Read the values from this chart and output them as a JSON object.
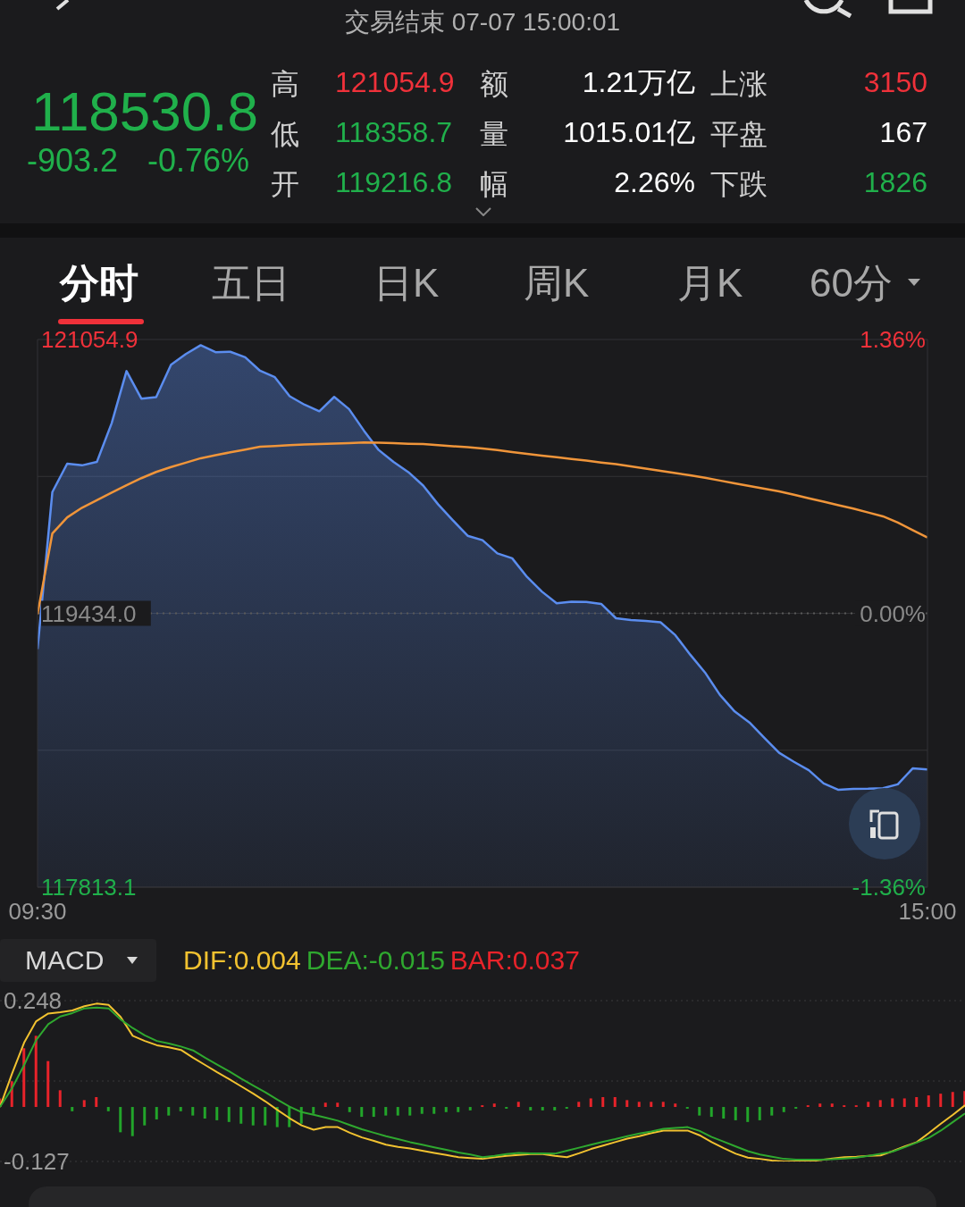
{
  "chart_data": [
    {
      "type": "other",
      "title": "交易结束 07-07 15:00:01",
      "annotations": [
        "118530.8",
        "-903.2",
        "-0.76%",
        "高",
        "121054.9",
        "额",
        "1.21万亿",
        "上涨",
        "3150",
        "低",
        "118358.7",
        "量",
        "1015.01亿",
        "平盘",
        "167",
        "开",
        "119216.8",
        "幅",
        "2.26%",
        "下跌",
        "1826",
        "分时",
        "五日",
        "日K",
        "周K",
        "月K",
        "60分"
      ]
    },
    {
      "type": "line",
      "categories": [
        "09:30",
        null,
        null,
        null,
        null,
        null,
        null,
        null,
        null,
        null,
        null,
        null,
        null,
        null,
        null,
        null,
        null,
        null,
        null,
        null,
        null,
        null,
        null,
        null,
        null,
        null,
        null,
        null,
        null,
        null,
        null,
        null,
        null,
        null,
        null,
        null,
        null,
        null,
        null,
        null,
        null,
        null,
        null,
        null,
        null,
        null,
        null,
        null,
        null,
        null,
        null,
        null,
        null,
        null,
        null,
        null,
        null,
        null,
        null,
        null,
        "15:00"
      ],
      "ylim": [
        117813.1,
        121054.9
      ],
      "yticks": [
        117813.1,
        {
          "value": 118623.55,
          "label": null
        },
        {
          "value": 119434.0,
          "label": "119434.0"
        },
        {
          "value": 120244.45,
          "label": null
        },
        121054.9
      ],
      "y2lim": [
        -1.36,
        1.36
      ],
      "y2ticks": [
        {
          "value": -1.36,
          "label": "-1.36%"
        },
        {
          "value": 0,
          "label": "0.00%"
        },
        {
          "value": 1.36,
          "label": "1.36%"
        }
      ],
      "ref_lines": [
        {
          "axis": "y",
          "value": 119434.0,
          "color": "#5a5a5a",
          "line_style": "dotted"
        }
      ],
      "grid": "y",
      "marker": "none",
      "line_style": "solid",
      "series": [
        {
          "type": "area",
          "color": "#5b8def",
          "values": [
            119222,
            120152,
            120320,
            120310,
            120330,
            120560,
            120868,
            120705,
            120714,
            120905,
            120969,
            121021,
            120980,
            120982,
            120950,
            120870,
            120832,
            120719,
            120669,
            120630,
            120715,
            120643,
            120516,
            120401,
            120330,
            120270,
            120190,
            120080,
            119985,
            119893,
            119867,
            119789,
            119760,
            119650,
            119563,
            119493,
            119503,
            119502,
            119490,
            119405,
            119394,
            119389,
            119381,
            119305,
            119190,
            119084,
            118952,
            118853,
            118788,
            118697,
            118608,
            118555,
            118505,
            118427,
            118389,
            118395,
            118396,
            118399,
            118422,
            118516,
            118510
          ]
        },
        {
          "type": "line",
          "color": "#f0953a",
          "values": [
            119429,
            119907,
            120002,
            120059,
            120104,
            120148,
            120192,
            120234,
            120271,
            120300,
            120326,
            120352,
            120370,
            120387,
            120403,
            120420,
            120424,
            120429,
            120433,
            120436,
            120439,
            120442,
            120445,
            120444,
            120441,
            120438,
            120436,
            120430,
            120423,
            120417,
            120410,
            120400,
            120389,
            120378,
            120368,
            120358,
            120348,
            120338,
            120327,
            120317,
            120304,
            120291,
            120277,
            120264,
            120251,
            120236,
            120220,
            120204,
            120188,
            120172,
            120156,
            120136,
            120115,
            120095,
            120074,
            120054,
            120031,
            120008,
            119971,
            119927,
            119883
          ]
        }
      ]
    },
    {
      "type": "bar",
      "title": "MACD",
      "categories": [
        null,
        null,
        null,
        null,
        null,
        null,
        null,
        null,
        null,
        null,
        null,
        null,
        null,
        null,
        null,
        null,
        null,
        null,
        null,
        null,
        null,
        null,
        null,
        null,
        null,
        null,
        null,
        null,
        null,
        null,
        null,
        null,
        null,
        null,
        null,
        null,
        null,
        null,
        null,
        null,
        null,
        null,
        null,
        null,
        null,
        null,
        null,
        null,
        null,
        null,
        null,
        null,
        null,
        null,
        null,
        null,
        null,
        null,
        null,
        null,
        null,
        null,
        null,
        null,
        null,
        null,
        null,
        null,
        null,
        null,
        null,
        null,
        null,
        null,
        null,
        null,
        null,
        null,
        null,
        null,
        null
      ],
      "ylim": [
        -0.127,
        0.248
      ],
      "yticks": [
        -0.127,
        {
          "value": 0.0605,
          "label": null
        },
        0.248
      ],
      "grid": "y",
      "legend": "top left",
      "marker": "none",
      "series": [
        {
          "type": "line",
          "name": "DIF:0.004",
          "color": "#f2c230",
          "values": [
            0,
            0.078,
            0.15,
            0.2,
            0.218,
            0.221,
            0.225,
            0.235,
            0.241,
            0.238,
            0.21,
            0.166,
            0.154,
            0.144,
            0.139,
            0.133,
            0.115,
            0.098,
            0.081,
            0.065,
            0.048,
            0.031,
            0.013,
            -0.007,
            -0.026,
            -0.043,
            -0.053,
            -0.047,
            -0.047,
            -0.06,
            -0.071,
            -0.079,
            -0.088,
            -0.093,
            -0.097,
            -0.102,
            -0.107,
            -0.112,
            -0.117,
            -0.119,
            -0.121,
            -0.117,
            -0.114,
            -0.112,
            -0.11,
            -0.11,
            -0.114,
            -0.117,
            -0.108,
            -0.098,
            -0.09,
            -0.082,
            -0.074,
            -0.068,
            -0.061,
            -0.055,
            -0.055,
            -0.055,
            -0.066,
            -0.082,
            -0.096,
            -0.109,
            -0.118,
            -0.121,
            -0.125,
            -0.127,
            -0.127,
            -0.127,
            -0.124,
            -0.12,
            -0.117,
            -0.116,
            -0.114,
            -0.113,
            -0.103,
            -0.092,
            -0.082,
            -0.061,
            -0.039,
            -0.018,
            0.004
          ]
        },
        {
          "type": "line",
          "name": "DEA:-0.015",
          "color": "#2fa82f",
          "values": [
            0,
            0.044,
            0.098,
            0.156,
            0.193,
            0.211,
            0.219,
            0.23,
            0.232,
            0.23,
            0.204,
            0.184,
            0.167,
            0.154,
            0.148,
            0.141,
            0.132,
            0.115,
            0.099,
            0.083,
            0.066,
            0.05,
            0.034,
            0.017,
            0.001,
            -0.012,
            -0.018,
            -0.025,
            -0.032,
            -0.042,
            -0.052,
            -0.06,
            -0.068,
            -0.075,
            -0.082,
            -0.088,
            -0.094,
            -0.1,
            -0.106,
            -0.111,
            -0.117,
            -0.114,
            -0.11,
            -0.107,
            -0.108,
            -0.108,
            -0.109,
            -0.102,
            -0.095,
            -0.088,
            -0.081,
            -0.075,
            -0.068,
            -0.062,
            -0.057,
            -0.051,
            -0.049,
            -0.047,
            -0.056,
            -0.07,
            -0.081,
            -0.092,
            -0.103,
            -0.111,
            -0.116,
            -0.121,
            -0.123,
            -0.123,
            -0.123,
            -0.122,
            -0.12,
            -0.118,
            -0.114,
            -0.109,
            -0.104,
            -0.094,
            -0.083,
            -0.072,
            -0.055,
            -0.035,
            -0.015
          ]
        },
        {
          "type": "bar",
          "name": "BAR:0.037",
          "color": "#e8232a",
          "values": [
            0.02,
            0.06,
            0.137,
            0.166,
            0.107,
            0.039,
            null,
            0.016,
            0.023,
            null,
            null,
            null,
            null,
            null,
            null,
            null,
            null,
            null,
            null,
            null,
            null,
            null,
            null,
            null,
            null,
            null,
            null,
            0.01,
            0.01,
            null,
            null,
            null,
            null,
            null,
            null,
            null,
            null,
            null,
            null,
            null,
            0.004,
            0.008,
            null,
            0.012,
            null,
            null,
            null,
            null,
            0.012,
            0.02,
            0.023,
            0.023,
            0.016,
            0.012,
            0.012,
            0.012,
            0.008,
            null,
            null,
            null,
            null,
            null,
            null,
            null,
            null,
            null,
            null,
            0.004,
            0.008,
            0.008,
            0.004,
            0.004,
            0.012,
            0.016,
            0.02,
            0.02,
            0.023,
            0.027,
            0.031,
            0.035,
            0.037
          ]
        },
        {
          "type": "bar",
          "color": "#22a52a",
          "values": [
            null,
            null,
            null,
            null,
            null,
            null,
            -0.01,
            null,
            null,
            -0.01,
            -0.059,
            -0.068,
            -0.043,
            -0.029,
            -0.02,
            -0.01,
            -0.02,
            -0.027,
            -0.031,
            -0.035,
            -0.039,
            -0.043,
            -0.043,
            -0.047,
            -0.047,
            -0.039,
            -0.016,
            null,
            null,
            -0.012,
            -0.023,
            -0.023,
            -0.02,
            -0.02,
            -0.02,
            -0.016,
            -0.016,
            -0.012,
            -0.012,
            -0.008,
            null,
            null,
            -0.004,
            null,
            -0.008,
            -0.008,
            -0.008,
            -0.004,
            null,
            null,
            null,
            null,
            null,
            null,
            null,
            null,
            null,
            -0.004,
            -0.02,
            -0.023,
            -0.027,
            -0.031,
            -0.035,
            -0.031,
            -0.02,
            -0.012,
            -0.004,
            null,
            null,
            null,
            null,
            null,
            null,
            null,
            null,
            null,
            null,
            null,
            null,
            null,
            null
          ]
        }
      ]
    }
  ]
}
